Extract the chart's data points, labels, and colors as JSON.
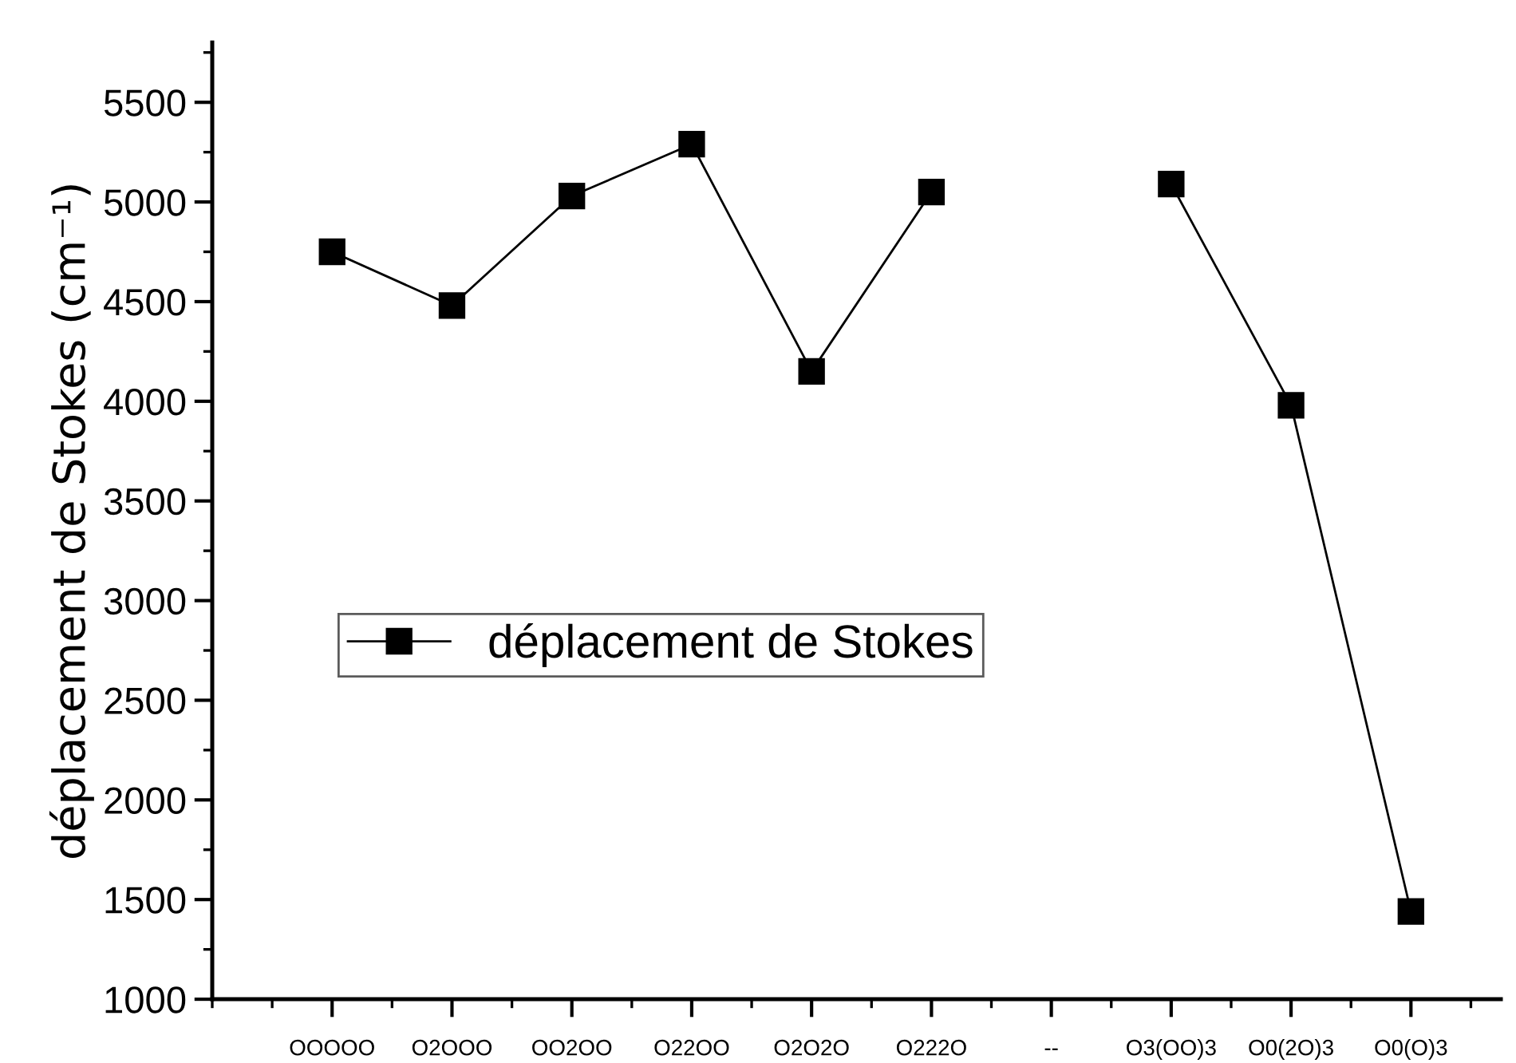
{
  "chart_data": {
    "type": "line",
    "ylabel": "déplacement de Stokes (cm⁻¹)",
    "categories": [
      "OOOOO",
      "O2OOO",
      "OO2OO",
      "O22OO",
      "O2O2O",
      "O222O",
      "--",
      "O3(OO)3",
      "O0(2O)3",
      "O0(O)3"
    ],
    "series": [
      {
        "name": "déplacement de Stokes",
        "color": "#000000",
        "values": [
          4750,
          4480,
          5030,
          5290,
          4150,
          5050,
          null,
          5090,
          3980,
          1440
        ]
      }
    ],
    "ylim": [
      1000,
      5800
    ],
    "yticks": [
      1000,
      1500,
      2000,
      2500,
      3000,
      3500,
      4000,
      4500,
      5000,
      5500
    ],
    "marker": "square",
    "line_style": "solid",
    "legend": "center left",
    "grid": false
  }
}
